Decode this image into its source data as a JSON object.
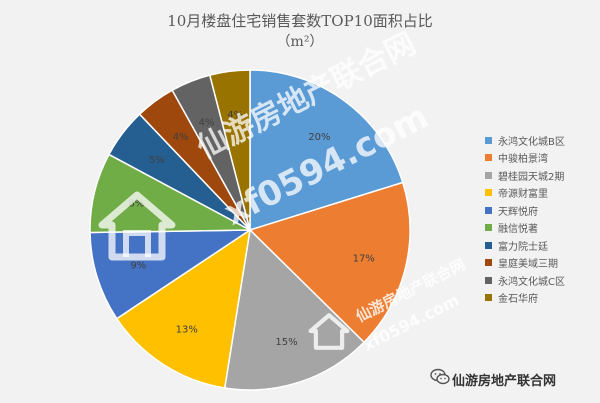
{
  "chart_data": {
    "type": "pie",
    "title": "10月楼盘住宅销售套数TOP10面积占比",
    "subtitle": "（m²）",
    "categories": [
      "永鸿文化城B区",
      "中骏柏景湾",
      "碧桂园天城2期",
      "帝源财富里",
      "天辉悦府",
      "融信悦著",
      "富力院士廷",
      "皇庭美域三期",
      "永鸿文化城C区",
      "金石华府"
    ],
    "values": [
      20,
      17,
      15,
      13,
      9,
      8,
      5,
      4,
      4,
      4
    ],
    "value_labels": [
      "20%",
      "17%",
      "15%",
      "13%",
      "9%",
      "8%",
      "5%",
      "4%",
      "4%",
      "4%"
    ],
    "colors": [
      "#5b9bd5",
      "#ed7d31",
      "#a5a5a5",
      "#ffc000",
      "#4472c4",
      "#70ad47",
      "#255e91",
      "#9e480e",
      "#636363",
      "#997300"
    ],
    "legend_position": "right",
    "grid": false
  },
  "watermark": {
    "name": "仙游房地产联合网",
    "domain": "xf0594.com",
    "brand_line": "仙游房地产联合网",
    "icon": "wechat-icon"
  }
}
